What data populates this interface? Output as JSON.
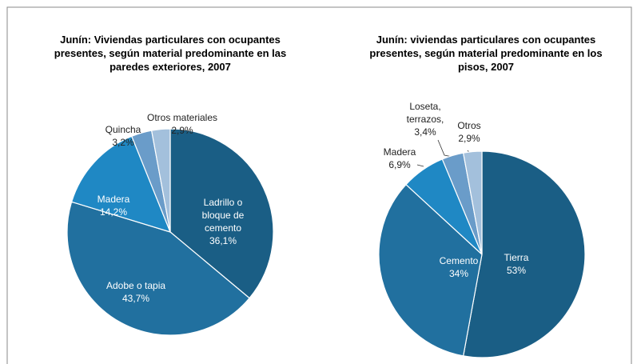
{
  "chart_data": [
    {
      "type": "pie",
      "title": "Junín: Viviendas particulares con ocupantes presentes, según material predominante en las paredes exteriores, 2007",
      "categories": [
        "Ladrillo o bloque de cemento",
        "Adobe o tapia",
        "Madera",
        "Quincha",
        "Otros materiales"
      ],
      "values": [
        36.1,
        43.7,
        14.2,
        3.2,
        2.9
      ],
      "value_labels": [
        "36,1%",
        "43,7%",
        "14,2%",
        "3,2%",
        "2,9%"
      ],
      "colors": [
        "#1a5e85",
        "#21709f",
        "#1f88c4",
        "#6a9cc9",
        "#a3c0dc"
      ]
    },
    {
      "type": "pie",
      "title": "Junín: viviendas particulares con ocupantes presentes, según material predominante en los pisos, 2007",
      "categories": [
        "Tierra",
        "Cemento",
        "Madera",
        "Loseta, terrazos,",
        "Otros"
      ],
      "values": [
        53,
        34,
        6.9,
        3.4,
        2.9
      ],
      "value_labels": [
        "53%",
        "34%",
        "6,9%",
        "3,4%",
        "2,9%"
      ],
      "colors": [
        "#1a5e85",
        "#21709f",
        "#1f88c4",
        "#6a9cc9",
        "#a3c0dc"
      ]
    }
  ]
}
